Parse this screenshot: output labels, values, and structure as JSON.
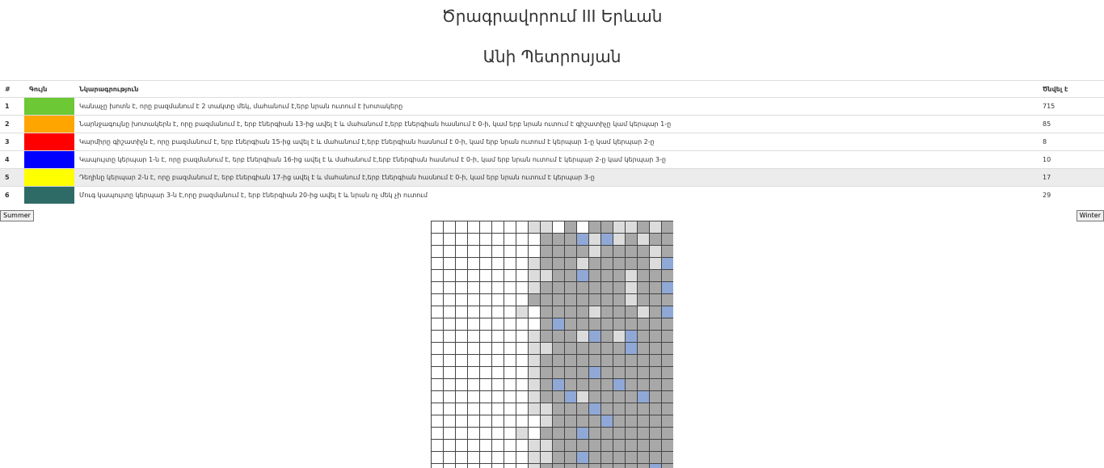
{
  "header": {
    "title": "Ծրագրավորում III Երևան",
    "subtitle": "Անի Պետրոսյան"
  },
  "legend": {
    "headers": [
      "#",
      "Գույն",
      "Նկարագրություն",
      "Ծնվել է"
    ],
    "rows": [
      {
        "num": "1",
        "color": "#6cc834",
        "desc": "Կանաչը խոտն է, որը բազմանում է 2 տակտը մեկ, մահանում է,երբ նրան ուտում է խոտակերը",
        "count": "715"
      },
      {
        "num": "2",
        "color": "#ffa500",
        "desc": "Նարնջագույնը խոտակերն է, որը բազմանում է, երբ էներգիան 13-ից ավել է և մահանում է,երբ էներգիան հասնում է 0-ի, կամ երբ նրան ուտում է գիշատիչը կամ կերպար 1-ը",
        "count": "85"
      },
      {
        "num": "3",
        "color": "#ff0000",
        "desc": "Կարմիրը գիշատիչն է, որը բազմանում է, երբ էներգիան 15-ից ավել է և մահանում է,երբ էներգիան հասնում է 0-ի, կամ երբ նրան ուտում է կերպար 1-ը կամ կերպար 2-ը",
        "count": "8"
      },
      {
        "num": "4",
        "color": "#0000ff",
        "desc": "Կապույտը կերպար 1-ն է, որը բազմանում է, երբ էներգիան 16-ից ավել է և մահանում է,երբ էներգիան հասնում է 0-ի, կամ երբ նրան ուտում է կերպար 2-ը կամ կերպար 3-ը",
        "count": "10"
      },
      {
        "num": "5",
        "color": "#ffff00",
        "desc": "Դեղինը կերպար 2-ն է, որը բազմանում է, երբ էներգիան 17-ից ավել է և մահանում է,երբ էներգիան հասնում է 0-ի, կամ երբ նրան ուտում է կերպար 3-ը",
        "count": "17"
      },
      {
        "num": "6",
        "color": "#2f6b66",
        "desc": "Մուգ կապույտը կերպար 3-ն է,որը բազմանում է, երբ էներգիան 20-ից ավել է և նրան ոչ մեկ չի ուտում",
        "count": "29"
      }
    ]
  },
  "buttons": {
    "summer": "Summer",
    "winter": "Winter"
  },
  "grid": {
    "palette": {
      "0": "#ffffff",
      "1": "#dcdcdc",
      "2": "#a8a8a8",
      "3": "#8fa8d6"
    },
    "rows": [
      "00000000110202211212",
      "00000000022231312122",
      "00000000022221222212",
      "00000000122212222213",
      "00000000112232221222",
      "00000000122222221223",
      "00000000222222221222",
      "00000001022221222123",
      "00000000023222222222",
      "00000000122213213222",
      "00000000112222223222",
      "00000000122222222222",
      "00000000122223222222",
      "00000000123222232222",
      "00000000122312222322",
      "00000000112223222222",
      "00000000012222322222",
      "00000001022232222222",
      "00000000112222222222",
      "00000000112232222222",
      "00000000122222222232"
    ]
  }
}
